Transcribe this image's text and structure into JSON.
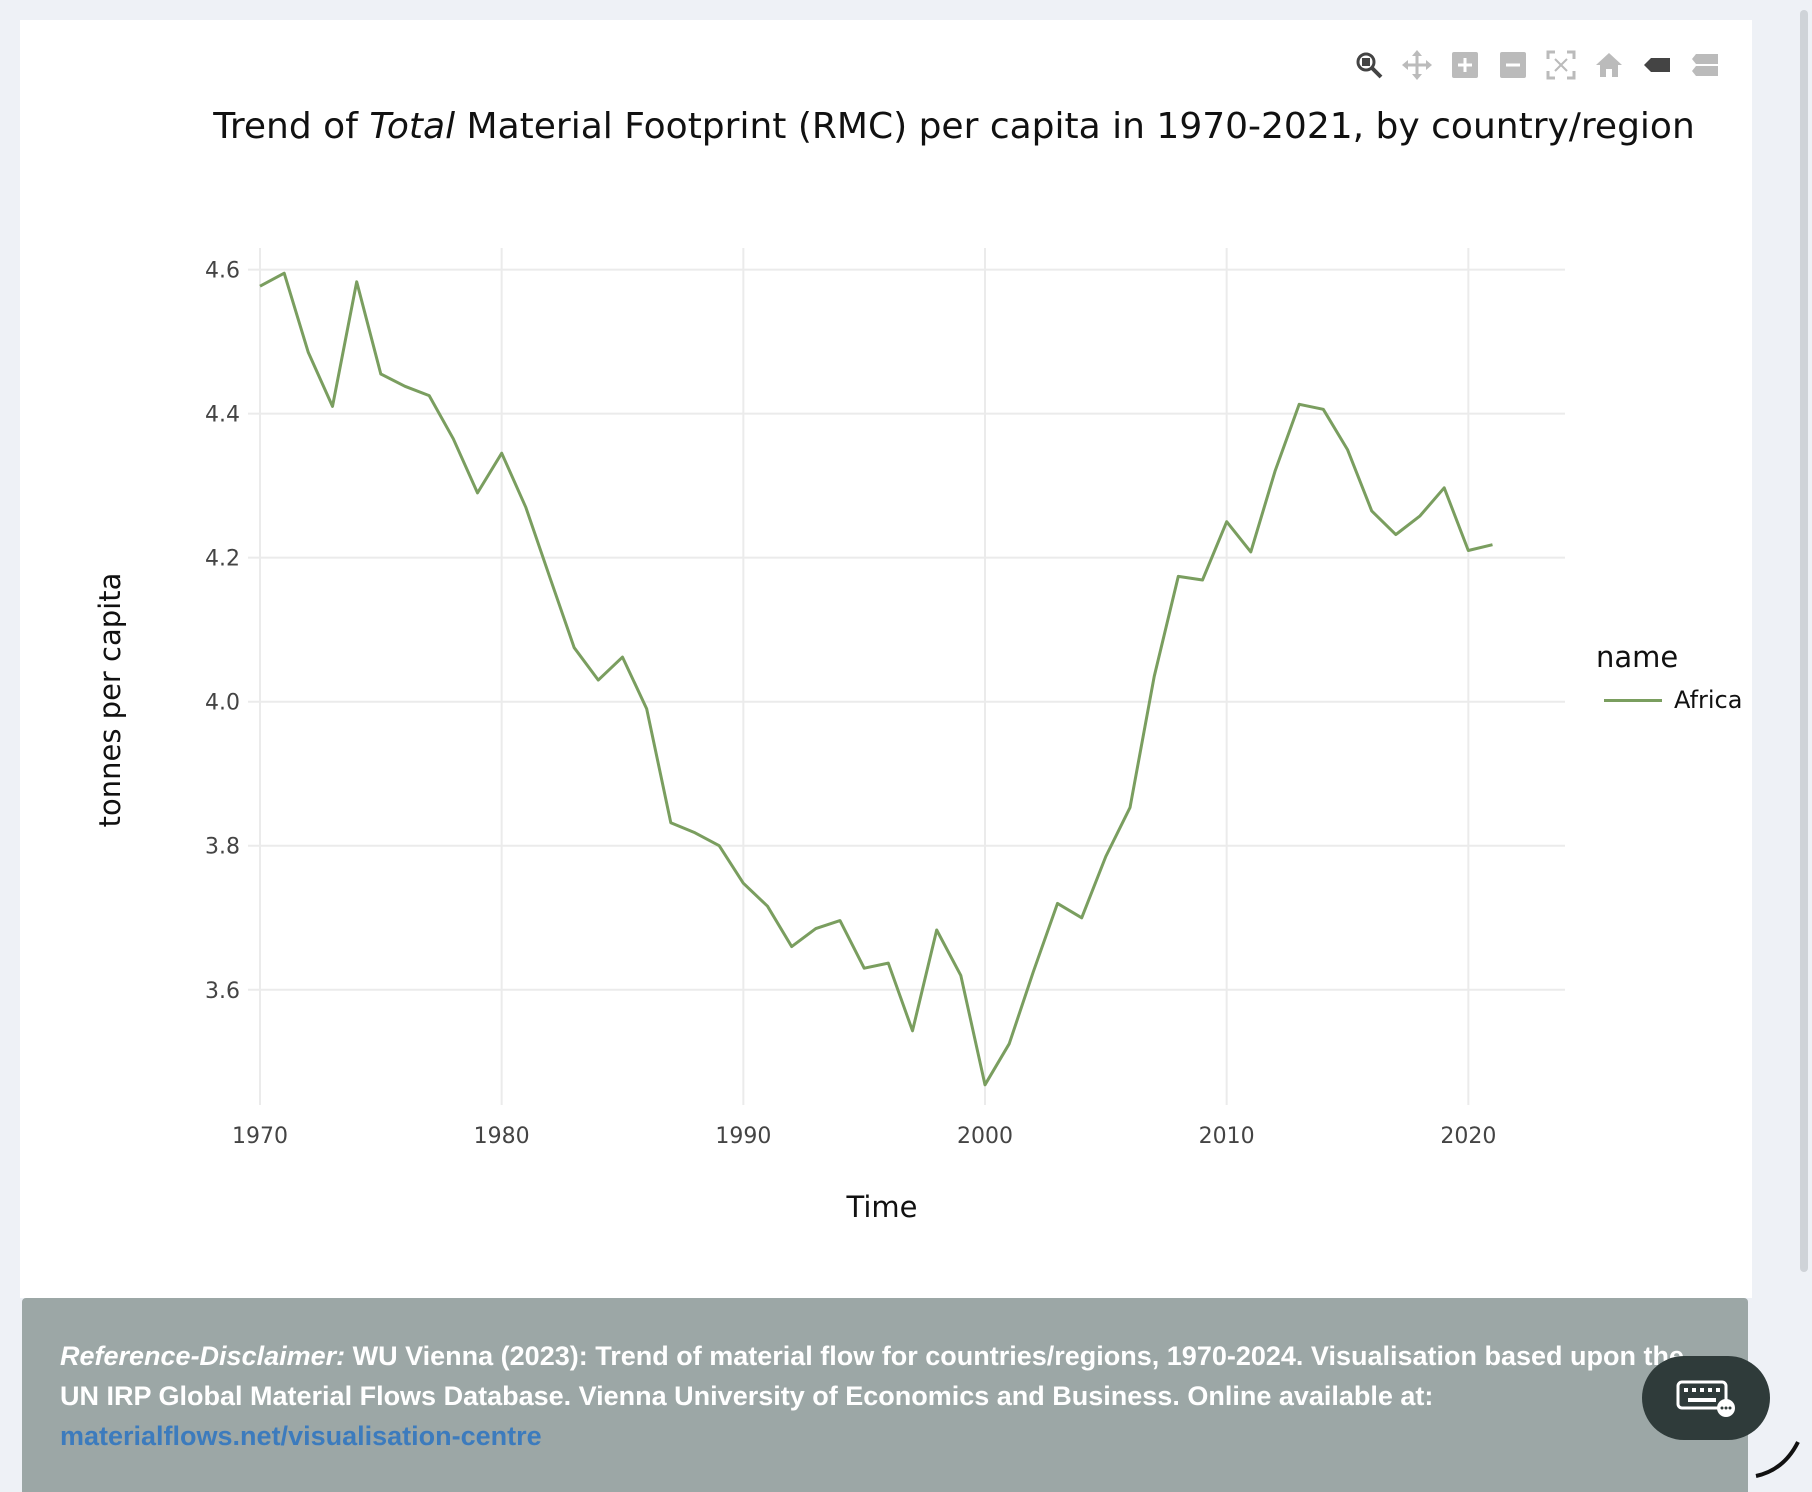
{
  "chart_data": {
    "type": "line",
    "title_parts": [
      "Trend of ",
      "Total",
      " Material Footprint (RMC) per capita in 1970-2021, by country/region"
    ],
    "xlabel": "Time",
    "ylabel": "tonnes per capita",
    "x_ticks": [
      "1970",
      "1980",
      "1990",
      "2000",
      "2010",
      "2020"
    ],
    "y_ticks": [
      "3.6",
      "3.8",
      "4.0",
      "4.2",
      "4.4",
      "4.6"
    ],
    "xlim": [
      1970,
      2024
    ],
    "ylim": [
      3.44,
      4.63
    ],
    "grid": true,
    "legend_title": "name",
    "legend_position": "right",
    "series": [
      {
        "name": "Africa",
        "color": "#7a9e5f",
        "x": [
          1970,
          1971,
          1972,
          1973,
          1974,
          1975,
          1976,
          1977,
          1978,
          1979,
          1980,
          1981,
          1982,
          1983,
          1984,
          1985,
          1986,
          1987,
          1988,
          1989,
          1990,
          1991,
          1992,
          1993,
          1994,
          1995,
          1996,
          1997,
          1998,
          1999,
          2000,
          2001,
          2002,
          2003,
          2004,
          2005,
          2006,
          2007,
          2008,
          2009,
          2010,
          2011,
          2012,
          2013,
          2014,
          2015,
          2016,
          2017,
          2018,
          2019,
          2020,
          2021
        ],
        "values": [
          4.577,
          4.595,
          4.485,
          4.41,
          4.583,
          4.455,
          4.438,
          4.425,
          4.365,
          4.29,
          4.345,
          4.27,
          4.172,
          4.075,
          4.03,
          4.062,
          3.99,
          3.832,
          3.818,
          3.8,
          3.748,
          3.716,
          3.66,
          3.685,
          3.696,
          3.63,
          3.637,
          3.543,
          3.683,
          3.62,
          3.468,
          3.525,
          3.625,
          3.72,
          3.7,
          3.785,
          3.853,
          4.035,
          4.174,
          4.169,
          4.25,
          4.208,
          4.32,
          4.413,
          4.406,
          4.35,
          4.265,
          4.232,
          4.258,
          4.297,
          4.21,
          4.218
        ]
      }
    ]
  },
  "footer": {
    "disclaimer_label": "Reference-Disclaimer:",
    "disclaimer_text": " WU Vienna (2023): Trend of material flow for countries/regions, 1970-2024. Visualisation based upon the UN IRP Global Material Flows Database. Vienna University of Economics and Business. Online available at:",
    "link_text": "materialflows.net/visualisation-centre"
  },
  "modebar": {
    "icons": [
      "zoom-icon",
      "pan-icon",
      "zoom-in-icon",
      "zoom-out-icon",
      "autoscale-icon",
      "reset-axes-icon",
      "hover-closest-icon",
      "hover-compare-icon"
    ]
  }
}
